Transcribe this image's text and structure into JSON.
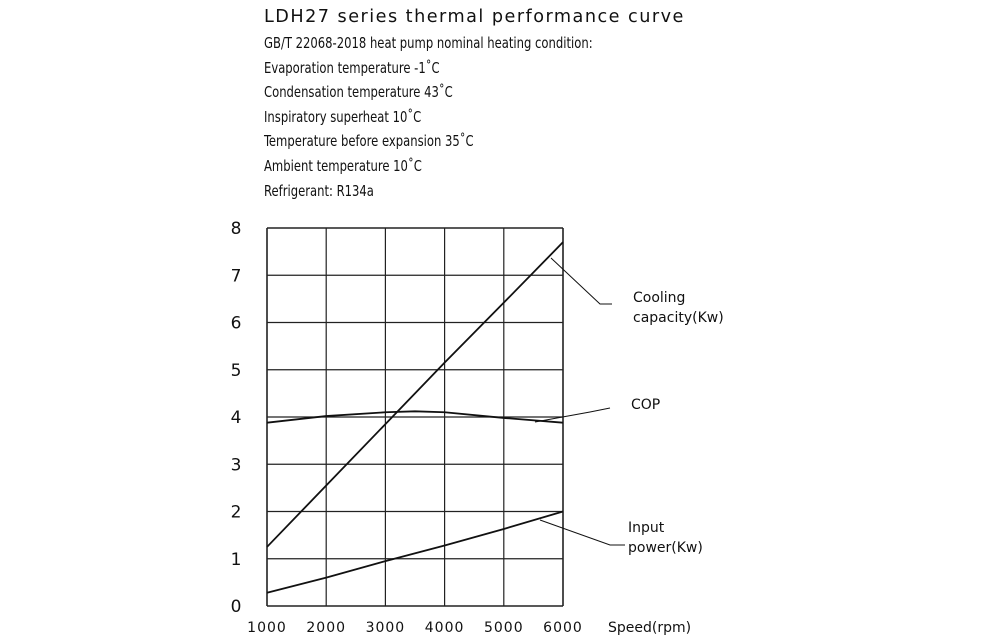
{
  "chart_data": {
    "type": "line",
    "title": "LDH27 series thermal performance curve",
    "conditions": [
      "GB/T 22068-2018 heat pump nominal heating condition:",
      "Evaporation temperature -1˚C",
      "Condensation  temperature 43˚C",
      "Inspiratory superheat 10˚C",
      "Temperature before expansion 35˚C",
      "Ambient  temperature 10˚C",
      "Refrigerant: R134a"
    ],
    "xlabel": "Speed(rpm)",
    "ylabel": "",
    "x_ticks": [
      "1000",
      "2000",
      "3000",
      "4000",
      "5000",
      "6000"
    ],
    "y_ticks": [
      "0",
      "1",
      "2",
      "3",
      "4",
      "5",
      "6",
      "7",
      "8"
    ],
    "xlim": [
      1000,
      6000
    ],
    "ylim": [
      0,
      8
    ],
    "grid": true,
    "series": [
      {
        "name": "Cooling capacity(Kw)",
        "label_lines": [
          "Cooling",
          "capacity(Kw)"
        ],
        "x": [
          1000,
          2000,
          3000,
          4000,
          5000,
          6000
        ],
        "values": [
          1.25,
          2.55,
          3.85,
          5.15,
          6.42,
          7.7
        ]
      },
      {
        "name": "COP",
        "label_lines": [
          "COP"
        ],
        "x": [
          1000,
          2000,
          3000,
          3500,
          4000,
          5000,
          6000
        ],
        "values": [
          3.88,
          4.02,
          4.1,
          4.12,
          4.1,
          3.98,
          3.88
        ]
      },
      {
        "name": "Input power(Kw)",
        "label_lines": [
          "Input",
          "power(Kw)"
        ],
        "x": [
          1000,
          2000,
          3000,
          4000,
          5000,
          6000
        ],
        "values": [
          0.28,
          0.6,
          0.95,
          1.28,
          1.63,
          2.0
        ]
      }
    ]
  }
}
